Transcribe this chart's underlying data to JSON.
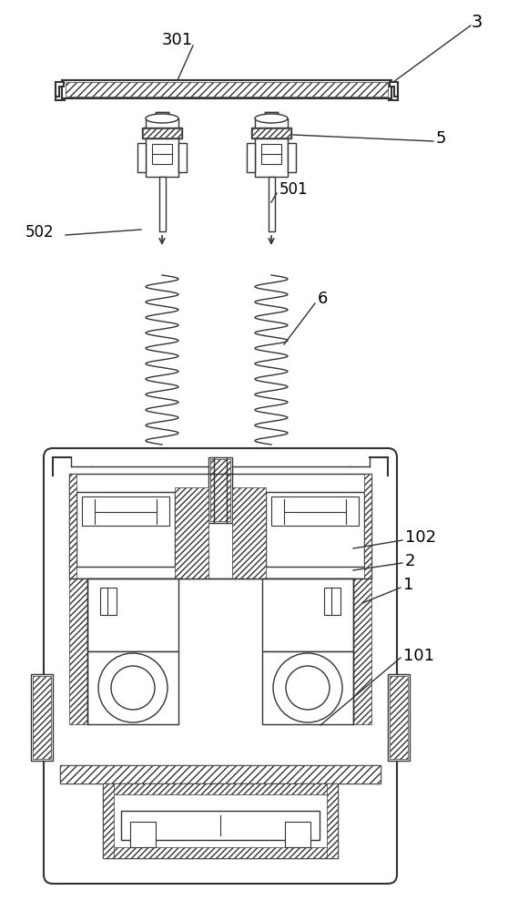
{
  "title": "",
  "bg_color": "#ffffff",
  "line_color": "#333333",
  "label_color": "#000000",
  "figsize": [
    5.69,
    10.0
  ],
  "dpi": 100
}
